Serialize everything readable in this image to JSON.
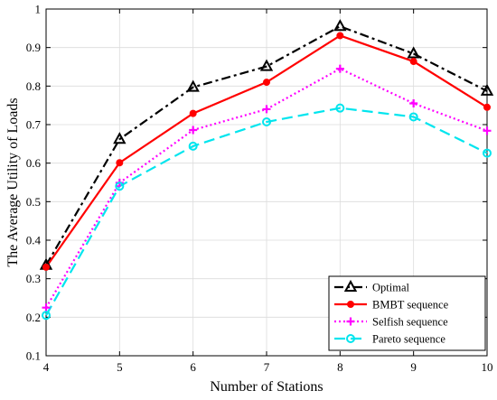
{
  "chart_data": {
    "type": "line",
    "title": "",
    "xlabel": "Number of Stations",
    "ylabel": "The Average Utility of Loads",
    "x": [
      4,
      5,
      6,
      7,
      8,
      9,
      10
    ],
    "xlim": [
      4,
      10
    ],
    "ylim": [
      0.1,
      1
    ],
    "xticks": [
      "4",
      "5",
      "6",
      "7",
      "8",
      "9",
      "10"
    ],
    "yticks": [
      "0.1",
      "0.2",
      "0.3",
      "0.4",
      "0.5",
      "0.6",
      "0.7",
      "0.8",
      "0.9",
      "1"
    ],
    "grid": true,
    "legend_position": "bottom-right",
    "series": [
      {
        "name": "Optimal",
        "values": [
          0.335,
          0.662,
          0.797,
          0.851,
          0.955,
          0.884,
          0.787
        ],
        "color": "#000000",
        "marker": "triangle",
        "dash": "dash-dot"
      },
      {
        "name": "BMBT sequence",
        "values": [
          0.33,
          0.601,
          0.729,
          0.81,
          0.931,
          0.864,
          0.745
        ],
        "color": "#ff0000",
        "marker": "dot",
        "dash": "solid"
      },
      {
        "name": "Selfish sequence",
        "values": [
          0.225,
          0.549,
          0.686,
          0.74,
          0.845,
          0.755,
          0.684
        ],
        "color": "#ff00ff",
        "marker": "plus",
        "dash": "dotted"
      },
      {
        "name": "Pareto sequence",
        "values": [
          0.205,
          0.54,
          0.644,
          0.707,
          0.743,
          0.72,
          0.626
        ],
        "color": "#00e5ee",
        "marker": "circle",
        "dash": "dashed"
      }
    ]
  }
}
